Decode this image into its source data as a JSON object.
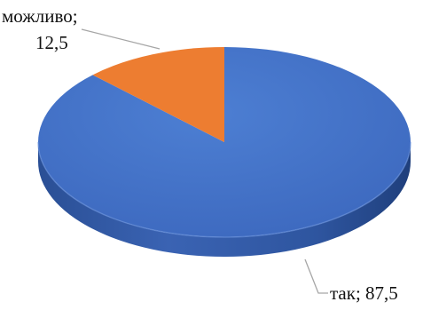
{
  "chart_data": {
    "type": "pie",
    "title": "",
    "style": "3d",
    "slices": [
      {
        "label": "так",
        "value": 87.5,
        "color": "#4472C4"
      },
      {
        "label": "можливо",
        "value": 12.5,
        "color": "#ED7D31"
      }
    ],
    "data_labels": [
      {
        "lines": [
          "так; 87,5"
        ]
      },
      {
        "lines": [
          "можливо;",
          "12,5"
        ]
      }
    ]
  }
}
